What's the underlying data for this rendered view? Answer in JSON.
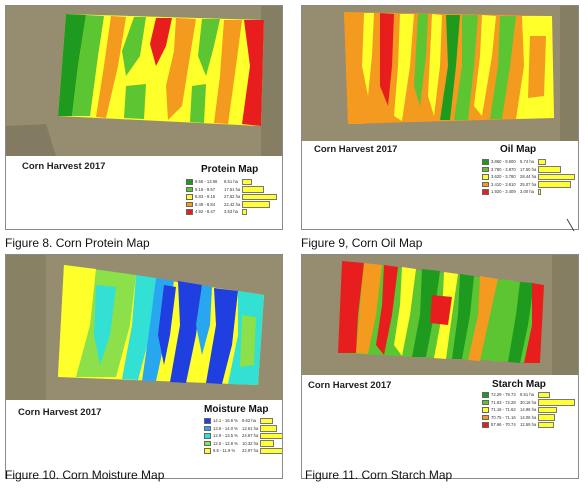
{
  "colors": {
    "dark_green": "#1e9a1e",
    "green": "#5cc532",
    "yellow": "#ffff2a",
    "orange": "#f39a1f",
    "red": "#e81e1e",
    "blue": "#1f3fe0",
    "light_blue": "#29a6f0",
    "cyan": "#32e0d4",
    "lime": "#8ce04a",
    "bar_yellow": "#ffff33",
    "satellite": "#8f876a"
  },
  "maps": [
    {
      "map_title": "Corn Harvest 2017",
      "legend_title": "Protein Map",
      "caption": "Figure 8. Corn Protein Map",
      "legend": [
        {
          "range": "9.56 - 13.66",
          "area": "8.51 ha",
          "share": 0.18,
          "color": "#1e9a1e"
        },
        {
          "range": "9.16 - 9.57",
          "area": "17.51 ha",
          "share": 0.38,
          "color": "#5cc532"
        },
        {
          "range": "8.83 - 9.15",
          "area": "27.62 ha",
          "share": 0.6,
          "color": "#ffff2a"
        },
        {
          "range": "8.49 - 8.84",
          "area": "22.42 ha",
          "share": 0.49,
          "color": "#f39a1f"
        },
        {
          "range": "4.92 - 8.47",
          "area": "3.53 ha",
          "share": 0.08,
          "color": "#e81e1e"
        }
      ]
    },
    {
      "map_title": "Corn Harvest 2017",
      "legend_title": "Oil Map",
      "caption": "Figure 9, Corn Oil Map",
      "legend": [
        {
          "range": "3.860 - 9.500",
          "area": "5.74 ha",
          "share": 0.13,
          "color": "#1e9a1e"
        },
        {
          "range": "3.780 - 3.870",
          "area": "17.50 ha",
          "share": 0.4,
          "color": "#5cc532"
        },
        {
          "range": "3.620 - 3.780",
          "area": "28.44 ha",
          "share": 0.64,
          "color": "#ffff2a"
        },
        {
          "range": "3.410 - 3.610",
          "area": "25.07 ha",
          "share": 0.57,
          "color": "#f39a1f"
        },
        {
          "range": "1.920 - 3.409",
          "share": 0.06,
          "area": "3.00 ha",
          "color": "#e81e1e"
        }
      ]
    },
    {
      "map_title": "Corn Harvest 2017",
      "legend_title": "Moisture Map",
      "caption": "Figure 10. Corn Moisture Map",
      "legend": [
        {
          "range": "14.1 - 16.6 %",
          "area": "9.62 ha",
          "share": 0.22,
          "color": "#1f3fe0"
        },
        {
          "range": "13.6 - 14.0 %",
          "area": "12.61 ha",
          "share": 0.29,
          "color": "#29a6f0"
        },
        {
          "range": "12.9 - 13.5 %",
          "area": "24.67 ha",
          "share": 0.57,
          "color": "#32e0d4"
        },
        {
          "range": "12.0 - 12.8 %",
          "area": "10.32 ha",
          "share": 0.24,
          "color": "#8ce04a"
        },
        {
          "range": "9.6 - 11.9 %",
          "area": "22.97 ha",
          "share": 0.53,
          "color": "#ffff2a"
        }
      ]
    },
    {
      "map_title": "Corn Harvest 2017",
      "legend_title": "Starch Map",
      "caption": "Figure 11. Corn Starch Map",
      "legend": [
        {
          "range": "72.29 - 79.73",
          "area": "9.51 ha",
          "share": 0.2,
          "color": "#1e9a1e"
        },
        {
          "range": "71.63 - 72.28",
          "area": "30.16 ha",
          "share": 0.64,
          "color": "#5cc532"
        },
        {
          "range": "71.16 - 71.62",
          "area": "14.96 ha",
          "share": 0.32,
          "color": "#ffff2a"
        },
        {
          "range": "70.75 - 71.16",
          "area": "14.06 ha",
          "share": 0.3,
          "color": "#f39a1f"
        },
        {
          "range": "57.66 - 70.74",
          "area": "12.59 ha",
          "share": 0.27,
          "color": "#e81e1e"
        }
      ]
    }
  ]
}
